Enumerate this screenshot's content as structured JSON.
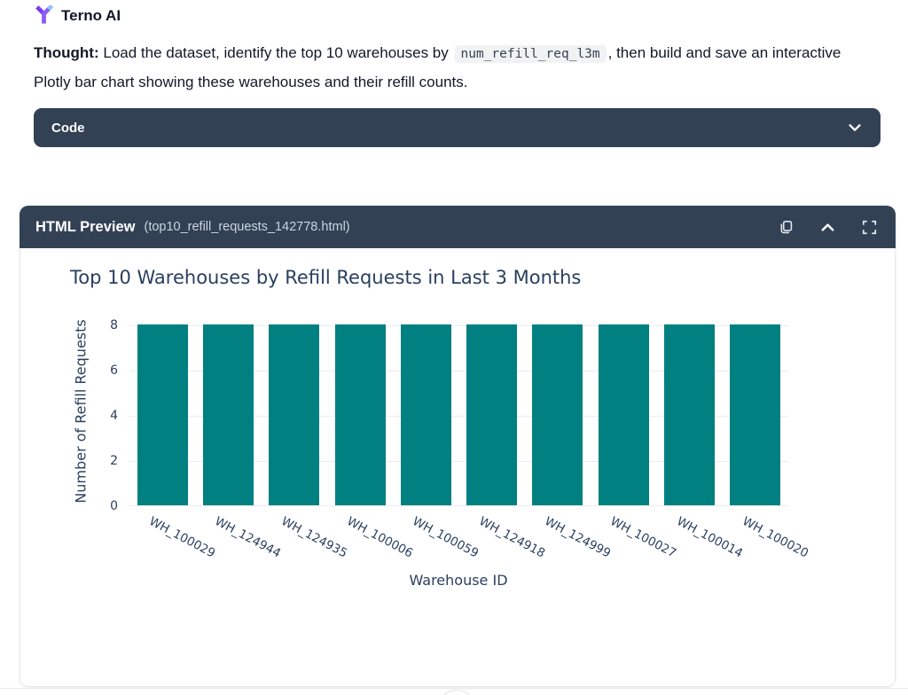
{
  "app": {
    "name": "Terno AI"
  },
  "thought": {
    "label": "Thought:",
    "text_before_code": "Load the dataset, identify the top 10 warehouses by",
    "code_snippet": "num_refill_req_l3m",
    "text_after_code": ", then build and save an interactive Plotly bar chart showing these warehouses and their refill counts."
  },
  "code_accordion": {
    "label": "Code"
  },
  "preview_panel": {
    "title": "HTML Preview",
    "filename": "(top10_refill_requests_142778.html)",
    "toolbar_icons": [
      "copy-icon",
      "collapse-icon",
      "fullscreen-icon"
    ]
  },
  "chart_data": {
    "type": "bar",
    "title": "Top 10 Warehouses by Refill Requests in Last 3 Months",
    "xlabel": "Warehouse ID",
    "ylabel": "Number of Refill Requests",
    "categories": [
      "WH_100029",
      "WH_124944",
      "WH_124935",
      "WH_100006",
      "WH_100059",
      "WH_124918",
      "WH_124999",
      "WH_100027",
      "WH_100014",
      "WH_100020"
    ],
    "values": [
      8,
      8,
      8,
      8,
      8,
      8,
      8,
      8,
      8,
      8
    ],
    "yticks": [
      0,
      2,
      4,
      6,
      8
    ],
    "ylim": [
      0,
      8.4
    ],
    "grid": true,
    "legend_position": "none",
    "tick_label_angle_deg": 28,
    "bar_color": "#008080",
    "font_color": "#2a3f5f"
  },
  "colors": {
    "panel_header_bg": "#334155",
    "logo_purple": "#8b5cf6",
    "logo_blue": "#93c5fd",
    "grid_line": "#e8edf3",
    "code_chip_bg": "#f1f2f4"
  }
}
